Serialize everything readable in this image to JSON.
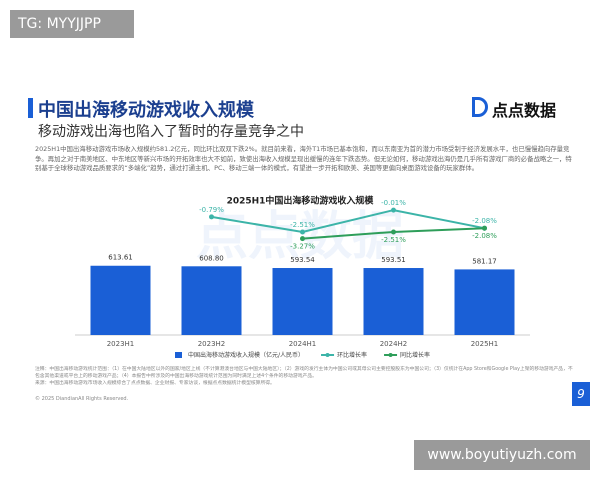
{
  "top_badge": "TG: MYYJJPP",
  "header": {
    "title": "中国出海移动游戏收入规模",
    "subtitle": "移动游戏出海也陷入了暂时的存量竞争之中",
    "logo": "点点数据"
  },
  "body": "2025H1中国出海移动游戏市场收入规模约581.2亿元，同比环比双双下跌2%。就目前来看，海外T1市场已基本饱和，而以东南亚为首的潜力市场受制于经济发展水平，也已慢慢趋向存量竞争。再加之对于南美地区、中东地区等新兴市场的开拓效率也大不如前，致使出海收入规模呈现出缓慢的连年下跌态势。但无论如何，移动游戏出海仍是几乎所有游戏厂商的必备战略之一，特别基于全球移动游戏品质要求的“多端化”趋势，通过打通主机、PC、移动三端一体的模式，有望进一步开拓和欧美、英国等更偏向桌面游戏设备的玩家群体。",
  "background_watermark": "点点数据",
  "chart_data": {
    "type": "bar",
    "title": "2025H1中国出海移动游戏收入规模",
    "categories": [
      "2023H1",
      "2023H2",
      "2024H1",
      "2024H2",
      "2025H1"
    ],
    "ylim": [
      0,
      700
    ],
    "y2lim": [
      -4,
      0
    ],
    "series": [
      {
        "name": "中国出海移动游戏收入规模（亿元/人民币）",
        "type": "bar",
        "color": "#1a5fd6",
        "values": [
          613.61,
          608.8,
          593.54,
          593.51,
          581.17
        ],
        "value_labels": [
          "613.61",
          "608.80",
          "593.54",
          "593.51",
          "581.17"
        ]
      },
      {
        "name": "环比增长率",
        "type": "line",
        "axis": "y2",
        "color": "#3cb4a8",
        "values": [
          null,
          -0.79,
          -2.51,
          -0.01,
          -2.08
        ],
        "value_labels": [
          null,
          "-0.79%",
          "-2.51%",
          "-0.01%",
          "-2.08%"
        ]
      },
      {
        "name": "同比增长率",
        "type": "line",
        "axis": "y2",
        "color": "#2e9e5a",
        "values": [
          null,
          null,
          -3.27,
          -2.51,
          -2.08
        ],
        "value_labels": [
          null,
          null,
          "-3.27%",
          "-2.51%",
          "-2.08%"
        ]
      }
    ]
  },
  "notes": [
    "注释：中国出海移动游戏统计范围：（1）在中国大陆地区以外的国家/地区上线（不计算港澳台地区与中国大陆地区）；（2）游戏的发行主体为中国公司或其母公司主要控股股东为中国公司；（3）仅统计在App Store和Google Play上架的移动游戏产品，不包含其他渠道或平台上的移动游戏产品；（4）本报告中所涉及的中国出海移动游戏统计范围为同时满足上述4个条件的移动游戏产品。",
    "来源：中国出海移动游戏市场收入规模综合了点点数据、企业财报、专家访谈，根据点点数据统计模型核算所得。"
  ],
  "copyright": "© 2025 DiandianAll Rights Reserved.",
  "page_number": "9",
  "bottom_badge": "www.boyutiyuzh.com"
}
